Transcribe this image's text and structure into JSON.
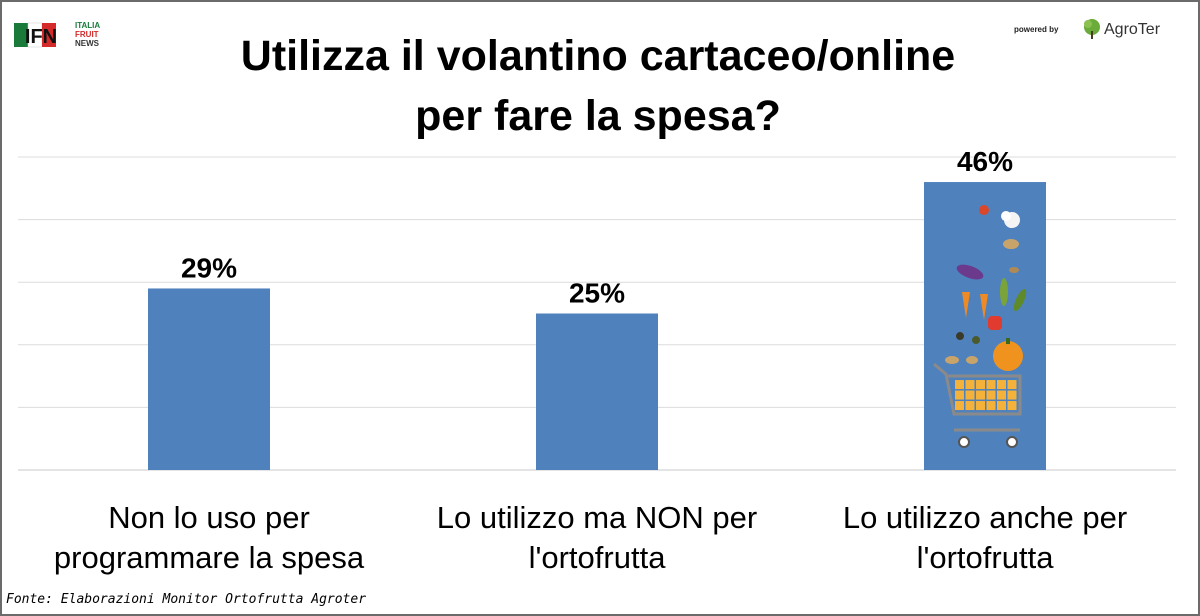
{
  "header": {
    "title_line1": "Utilizza il volantino cartaceo/online",
    "title_line2": "per fare la spesa?"
  },
  "logos": {
    "ifn": {
      "mark": "IFN",
      "line1": "ITALIA",
      "line2": "FRUIT",
      "line3": "NEWS",
      "icon": "ifn-logo"
    },
    "agroter": {
      "prefix": "powered by",
      "name": "AgroTer",
      "icon": "agroter-tree-logo"
    }
  },
  "chart_data": {
    "type": "bar",
    "categories": [
      [
        "Non lo uso per",
        "programmare la spesa"
      ],
      [
        "Lo utilizzo ma NON per",
        "l'ortofrutta"
      ],
      [
        "Lo utilizzo anche per",
        "l'ortofrutta"
      ]
    ],
    "values": [
      29,
      25,
      46
    ],
    "data_labels": [
      "29%",
      "25%",
      "46%"
    ],
    "ylim": [
      0,
      50
    ],
    "grid": true,
    "bar_color": "#4f81bd",
    "highlight_bar_icon": "shopping-cart-vegetables-illustration"
  },
  "footer": {
    "source": "Fonte: Elaborazioni Monitor Ortofrutta Agroter"
  }
}
